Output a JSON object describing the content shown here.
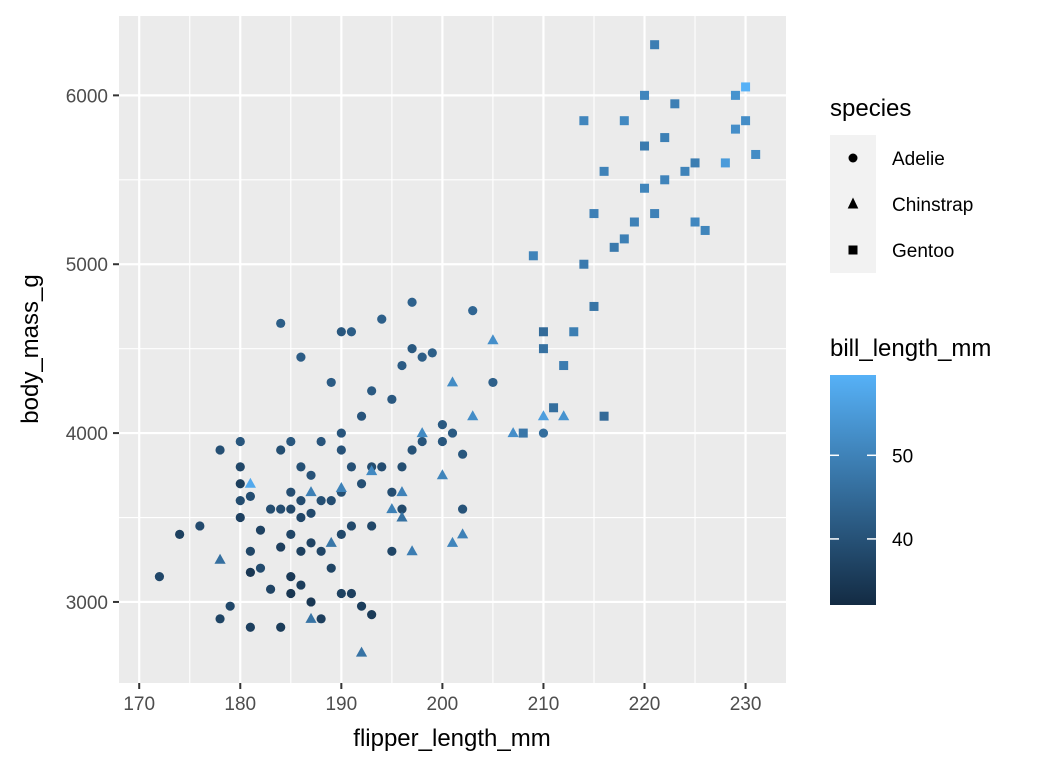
{
  "chart_data": {
    "type": "scatter",
    "xlabel": "flipper_length_mm",
    "ylabel": "body_mass_g",
    "xlim": [
      168,
      234
    ],
    "ylim": [
      2520,
      6470
    ],
    "x_ticks": [
      170,
      180,
      190,
      200,
      210,
      220,
      230
    ],
    "y_ticks": [
      3000,
      4000,
      5000,
      6000
    ],
    "grid": true,
    "legend_placement": "right",
    "shape_legend": {
      "title": "species",
      "entries": [
        {
          "label": "Adelie",
          "shape": "circle"
        },
        {
          "label": "Chinstrap",
          "shape": "triangle"
        },
        {
          "label": "Gentoo",
          "shape": "square"
        }
      ]
    },
    "color_legend": {
      "title": "bill_length_mm",
      "range": [
        32.1,
        59.6
      ],
      "ticks": [
        40,
        50
      ],
      "low_color": "#132b43",
      "high_color": "#56b1f7"
    },
    "series": [
      {
        "name": "Adelie",
        "shape": "circle",
        "points": [
          [
            172,
            3150,
            37.9
          ],
          [
            174,
            3400,
            36.4
          ],
          [
            176,
            3450,
            38.5
          ],
          [
            178,
            3900,
            39.5
          ],
          [
            178,
            2900,
            37.2
          ],
          [
            179,
            2975,
            38.1
          ],
          [
            180,
            3950,
            40.9
          ],
          [
            180,
            3800,
            37.8
          ],
          [
            180,
            3600,
            38.8
          ],
          [
            180,
            3500,
            36.5
          ],
          [
            180,
            3700,
            35.9
          ],
          [
            181,
            3625,
            39.1
          ],
          [
            181,
            3300,
            37.6
          ],
          [
            181,
            2850,
            36.2
          ],
          [
            181,
            3175,
            34.6
          ],
          [
            182,
            3425,
            36.7
          ],
          [
            182,
            3200,
            38.6
          ],
          [
            183,
            3550,
            39.0
          ],
          [
            183,
            3075,
            37.3
          ],
          [
            184,
            4650,
            42.5
          ],
          [
            184,
            3900,
            39.2
          ],
          [
            184,
            3550,
            38.9
          ],
          [
            184,
            3325,
            36.0
          ],
          [
            184,
            2850,
            35.5
          ],
          [
            185,
            3950,
            41.1
          ],
          [
            185,
            3650,
            39.3
          ],
          [
            185,
            3550,
            38.1
          ],
          [
            185,
            3400,
            37.4
          ],
          [
            185,
            3050,
            34.1
          ],
          [
            185,
            3150,
            35.0
          ],
          [
            186,
            4450,
            42.2
          ],
          [
            186,
            3800,
            39.6
          ],
          [
            186,
            3600,
            38.7
          ],
          [
            186,
            3500,
            37.7
          ],
          [
            186,
            3300,
            36.4
          ],
          [
            186,
            3100,
            35.7
          ],
          [
            187,
            3750,
            40.2
          ],
          [
            187,
            3525,
            38.3
          ],
          [
            187,
            3350,
            37.0
          ],
          [
            187,
            3000,
            34.5
          ],
          [
            188,
            3950,
            40.6
          ],
          [
            188,
            3600,
            39.5
          ],
          [
            188,
            3300,
            37.5
          ],
          [
            188,
            2900,
            36.0
          ],
          [
            189,
            4300,
            42.0
          ],
          [
            189,
            3600,
            39.1
          ],
          [
            189,
            3200,
            37.2
          ],
          [
            190,
            4600,
            41.1
          ],
          [
            190,
            4000,
            40.8
          ],
          [
            190,
            3650,
            39.6
          ],
          [
            190,
            3400,
            38.0
          ],
          [
            190,
            3050,
            36.6
          ],
          [
            190,
            3900,
            40.2
          ],
          [
            191,
            4600,
            42.3
          ],
          [
            191,
            3800,
            39.7
          ],
          [
            191,
            3450,
            38.2
          ],
          [
            191,
            3050,
            36.2
          ],
          [
            192,
            4100,
            40.6
          ],
          [
            192,
            3700,
            39.5
          ],
          [
            192,
            2975,
            35.9
          ],
          [
            193,
            4250,
            41.5
          ],
          [
            193,
            3800,
            39.0
          ],
          [
            193,
            3450,
            37.8
          ],
          [
            193,
            2925,
            35.3
          ],
          [
            194,
            4675,
            42.8
          ],
          [
            194,
            3800,
            38.9
          ],
          [
            195,
            4200,
            41.4
          ],
          [
            195,
            3650,
            39.3
          ],
          [
            195,
            3300,
            37.6
          ],
          [
            196,
            4400,
            42.0
          ],
          [
            196,
            3800,
            39.2
          ],
          [
            196,
            3550,
            38.4
          ],
          [
            197,
            4500,
            41.3
          ],
          [
            197,
            3900,
            40.1
          ],
          [
            197,
            4775,
            43.2
          ],
          [
            198,
            4450,
            42.4
          ],
          [
            198,
            3950,
            40.5
          ],
          [
            199,
            4475,
            42.7
          ],
          [
            200,
            4050,
            41.5
          ],
          [
            200,
            3950,
            40.9
          ],
          [
            201,
            4000,
            41.7
          ],
          [
            202,
            3875,
            41.1
          ],
          [
            202,
            3550,
            40.3
          ],
          [
            203,
            4725,
            44.1
          ],
          [
            205,
            4300,
            43.0
          ],
          [
            210,
            4000,
            45.8
          ]
        ]
      },
      {
        "name": "Chinstrap",
        "shape": "triangle",
        "points": [
          [
            178,
            3250,
            46.1
          ],
          [
            181,
            3700,
            58.0
          ],
          [
            187,
            2900,
            46.9
          ],
          [
            187,
            3650,
            49.5
          ],
          [
            189,
            3350,
            47.6
          ],
          [
            190,
            3675,
            50.1
          ],
          [
            192,
            2700,
            46.9
          ],
          [
            193,
            3775,
            51.3
          ],
          [
            195,
            3550,
            49.7
          ],
          [
            196,
            3650,
            50.0
          ],
          [
            196,
            3500,
            46.4
          ],
          [
            197,
            3300,
            49.0
          ],
          [
            198,
            4000,
            51.7
          ],
          [
            200,
            3750,
            50.5
          ],
          [
            201,
            3350,
            50.6
          ],
          [
            201,
            4300,
            52.0
          ],
          [
            202,
            3400,
            49.8
          ],
          [
            203,
            4100,
            52.2
          ],
          [
            205,
            4550,
            52.7
          ],
          [
            207,
            4000,
            52.5
          ],
          [
            210,
            4100,
            55.8
          ],
          [
            212,
            4100,
            53.5
          ]
        ]
      },
      {
        "name": "Gentoo",
        "shape": "square",
        "points": [
          [
            208,
            4000,
            47.5
          ],
          [
            209,
            5050,
            50.1
          ],
          [
            210,
            4500,
            46.5
          ],
          [
            210,
            4600,
            45.2
          ],
          [
            211,
            4150,
            46.0
          ],
          [
            212,
            4400,
            48.7
          ],
          [
            213,
            4600,
            49.1
          ],
          [
            214,
            5850,
            50.8
          ],
          [
            214,
            5000,
            48.4
          ],
          [
            215,
            5300,
            49.6
          ],
          [
            215,
            4750,
            47.2
          ],
          [
            216,
            4100,
            45.1
          ],
          [
            216,
            5550,
            50.0
          ],
          [
            217,
            5100,
            48.2
          ],
          [
            218,
            5150,
            49.5
          ],
          [
            218,
            5850,
            51.3
          ],
          [
            219,
            5250,
            49.8
          ],
          [
            220,
            5450,
            50.5
          ],
          [
            220,
            6000,
            50.7
          ],
          [
            220,
            5700,
            48.6
          ],
          [
            221,
            6300,
            49.2
          ],
          [
            221,
            5300,
            49.8
          ],
          [
            222,
            5500,
            50.4
          ],
          [
            222,
            5750,
            49.5
          ],
          [
            223,
            5950,
            49.4
          ],
          [
            224,
            5550,
            50.2
          ],
          [
            225,
            5600,
            49.1
          ],
          [
            225,
            5250,
            51.0
          ],
          [
            226,
            5200,
            50.5
          ],
          [
            228,
            5600,
            55.1
          ],
          [
            229,
            5800,
            52.5
          ],
          [
            230,
            5850,
            52.2
          ],
          [
            230,
            6050,
            59.6
          ],
          [
            231,
            5650,
            52.0
          ],
          [
            229,
            6000,
            53.4
          ]
        ]
      }
    ]
  }
}
